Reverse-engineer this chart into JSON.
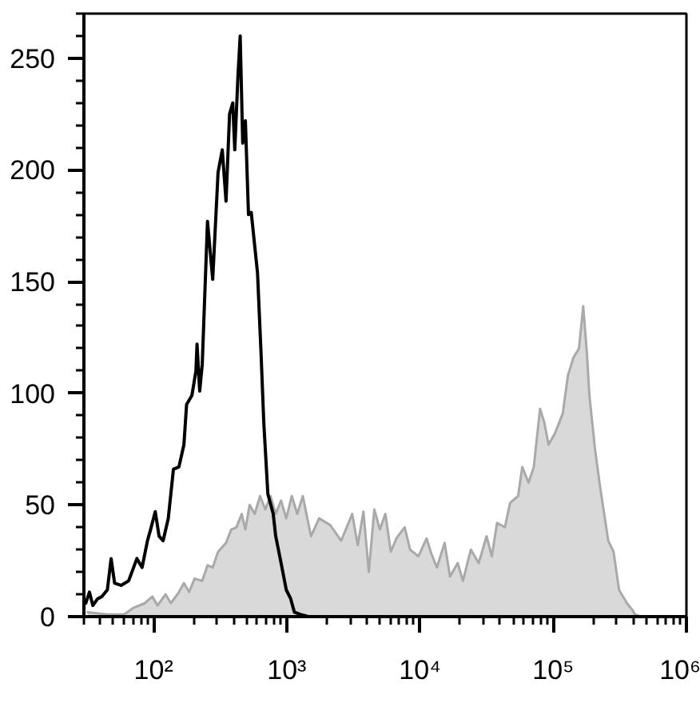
{
  "chart_data": {
    "type": "line",
    "log": "x",
    "grid": false,
    "xlim": [
      30,
      1000000
    ],
    "xticks": [
      {
        "value": 100,
        "label": "10²"
      },
      {
        "value": 1000,
        "label": "10³"
      },
      {
        "value": 10000,
        "label": "10⁴"
      },
      {
        "value": 100000,
        "label": "10⁵"
      },
      {
        "value": 1000000,
        "label": "10⁶"
      }
    ],
    "ylim": [
      0,
      270
    ],
    "yticks": [
      0,
      50,
      100,
      150,
      200,
      250
    ],
    "series": [
      {
        "type": "area",
        "color": "#d9d9d9",
        "x": [
          32,
          45,
          60,
          71,
          86,
          98,
          107,
          123,
          135,
          155,
          169,
          185,
          203,
          232,
          254,
          278,
          305,
          350,
          383,
          419,
          459,
          489,
          526,
          575,
          630,
          690,
          755,
          826,
          906,
          991,
          1090,
          1200,
          1320,
          1520,
          1750,
          2120,
          2560,
          3100,
          3410,
          3760,
          4130,
          4540,
          5000,
          5500,
          6040,
          6650,
          7670,
          8430,
          9730,
          11200,
          12200,
          13400,
          15300,
          16800,
          19200,
          21000,
          24100,
          27600,
          31600,
          34600,
          37900,
          43400,
          47500,
          54500,
          58600,
          65300,
          71500,
          79600,
          85700,
          92300,
          103000,
          118000,
          129000,
          142000,
          156000,
          168000,
          179000,
          187000,
          206000,
          225000,
          259000,
          284000,
          312000,
          358000,
          393000,
          411000,
          451000
        ],
        "values": [
          2,
          1,
          1,
          4,
          6,
          9,
          5,
          10,
          6,
          11,
          15,
          11,
          17,
          16,
          23,
          22,
          29,
          33,
          39,
          40,
          46,
          39,
          50,
          46,
          54,
          48,
          54,
          46,
          52,
          44,
          54,
          46,
          54,
          36,
          44,
          41,
          34,
          46,
          32,
          47,
          20,
          48,
          39,
          46,
          29,
          35,
          40,
          30,
          27,
          35,
          28,
          22,
          33,
          18,
          24,
          16,
          30,
          24,
          36,
          27,
          42,
          40,
          51,
          54,
          67,
          60,
          67,
          93,
          87,
          77,
          82,
          91,
          108,
          116,
          120,
          139,
          118,
          99,
          75,
          58,
          34,
          29,
          12,
          6,
          3,
          1,
          0
        ]
      },
      {
        "color": "#000000",
        "x": [
          31,
          33,
          35,
          38,
          41,
          45,
          48,
          51,
          57,
          65,
          75,
          82,
          90,
          95,
          103,
          110,
          118,
          129,
          141,
          155,
          169,
          177,
          194,
          208,
          212,
          222,
          232,
          254,
          278,
          305,
          328,
          350,
          372,
          393,
          407,
          430,
          447,
          467,
          489,
          516,
          541,
          603,
          641,
          672,
          721,
          791,
          826,
          906,
          991,
          1070,
          1140,
          1260,
          1450,
          1750
        ],
        "values": [
          6,
          11,
          5,
          8,
          9,
          12,
          26,
          15,
          14,
          16,
          26,
          22,
          34,
          39,
          47,
          36,
          34,
          44,
          66,
          67,
          77,
          95,
          99,
          110,
          122,
          101,
          113,
          177,
          151,
          199,
          209,
          186,
          225,
          230,
          209,
          242,
          260,
          212,
          222,
          180,
          181,
          154,
          118,
          87,
          55,
          46,
          36,
          24,
          12,
          8,
          2,
          1,
          0,
          0
        ]
      }
    ]
  }
}
